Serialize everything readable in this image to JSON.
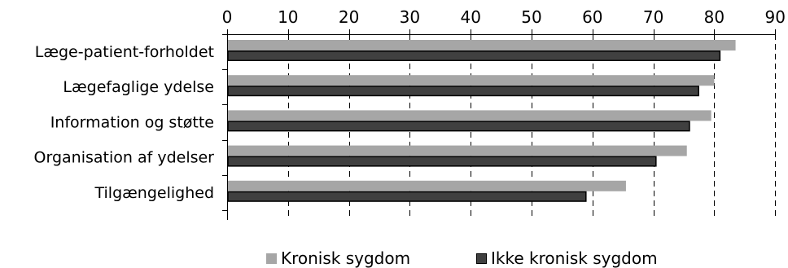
{
  "chart_data": {
    "type": "bar",
    "orientation": "horizontal",
    "categories": [
      "Læge-patient-forholdet",
      "Lægefaglige ydelse",
      "Information og støtte",
      "Organisation af ydelser",
      "Tilgængelighed"
    ],
    "series": [
      {
        "name": "Kronisk sygdom",
        "values": [
          83.5,
          80,
          79.5,
          75.5,
          65.5
        ],
        "color": "#a6a6a6"
      },
      {
        "name": "Ikke kronisk sygdom",
        "values": [
          81,
          77.5,
          76,
          70.5,
          59
        ],
        "color": "#404040"
      }
    ],
    "xlim": [
      0,
      90
    ],
    "xticks": [
      "0",
      "10",
      "20",
      "30",
      "40",
      "50",
      "60",
      "70",
      "80",
      "90"
    ],
    "x_axis_position": "top",
    "grid": "vertical dashed",
    "legend_position": "bottom",
    "title": "",
    "xlabel": "",
    "ylabel": ""
  }
}
